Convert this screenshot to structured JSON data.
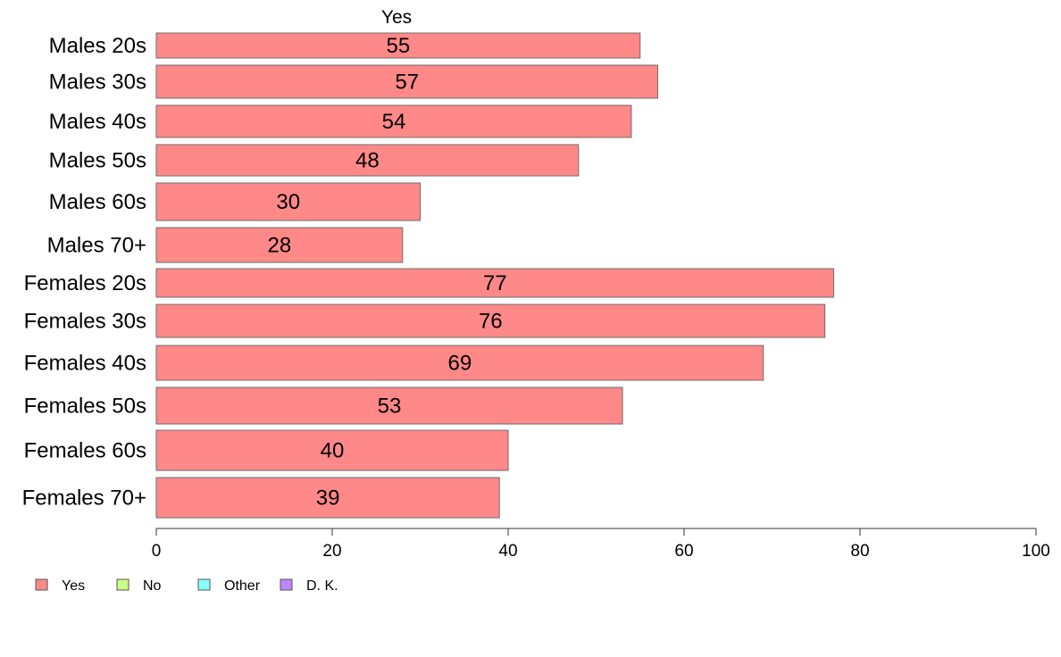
{
  "chart_data": {
    "type": "bar",
    "orientation": "horizontal",
    "title": "Yes",
    "categories": [
      "Males 20s",
      "Males 30s",
      "Males 40s",
      "Males 50s",
      "Males 60s",
      "Males 70+",
      "Females 20s",
      "Females 30s",
      "Females 40s",
      "Females 50s",
      "Females 60s",
      "Females 70+"
    ],
    "series": [
      {
        "name": "Yes",
        "color": "#ff8888",
        "values": [
          55,
          57,
          54,
          48,
          30,
          28,
          77,
          76,
          69,
          53,
          40,
          39
        ]
      }
    ],
    "data_labels": [
      "55",
      "57",
      "54",
      "48",
      "30",
      "28",
      "77",
      "76",
      "69",
      "53",
      "40",
      "39"
    ],
    "xlim": [
      0,
      100
    ],
    "x_ticks": [
      0,
      20,
      40,
      60,
      80,
      100
    ],
    "x_tick_labels": [
      "0",
      "20",
      "40",
      "60",
      "80",
      "100"
    ],
    "grid": false,
    "legend": {
      "placement": "bottom-left",
      "entries": [
        {
          "label": "Yes",
          "color": "#ff8888"
        },
        {
          "label": "No",
          "color": "#ccff88"
        },
        {
          "label": "Other",
          "color": "#88ffff"
        },
        {
          "label": "D. K.",
          "color": "#bb88ff"
        }
      ]
    }
  }
}
